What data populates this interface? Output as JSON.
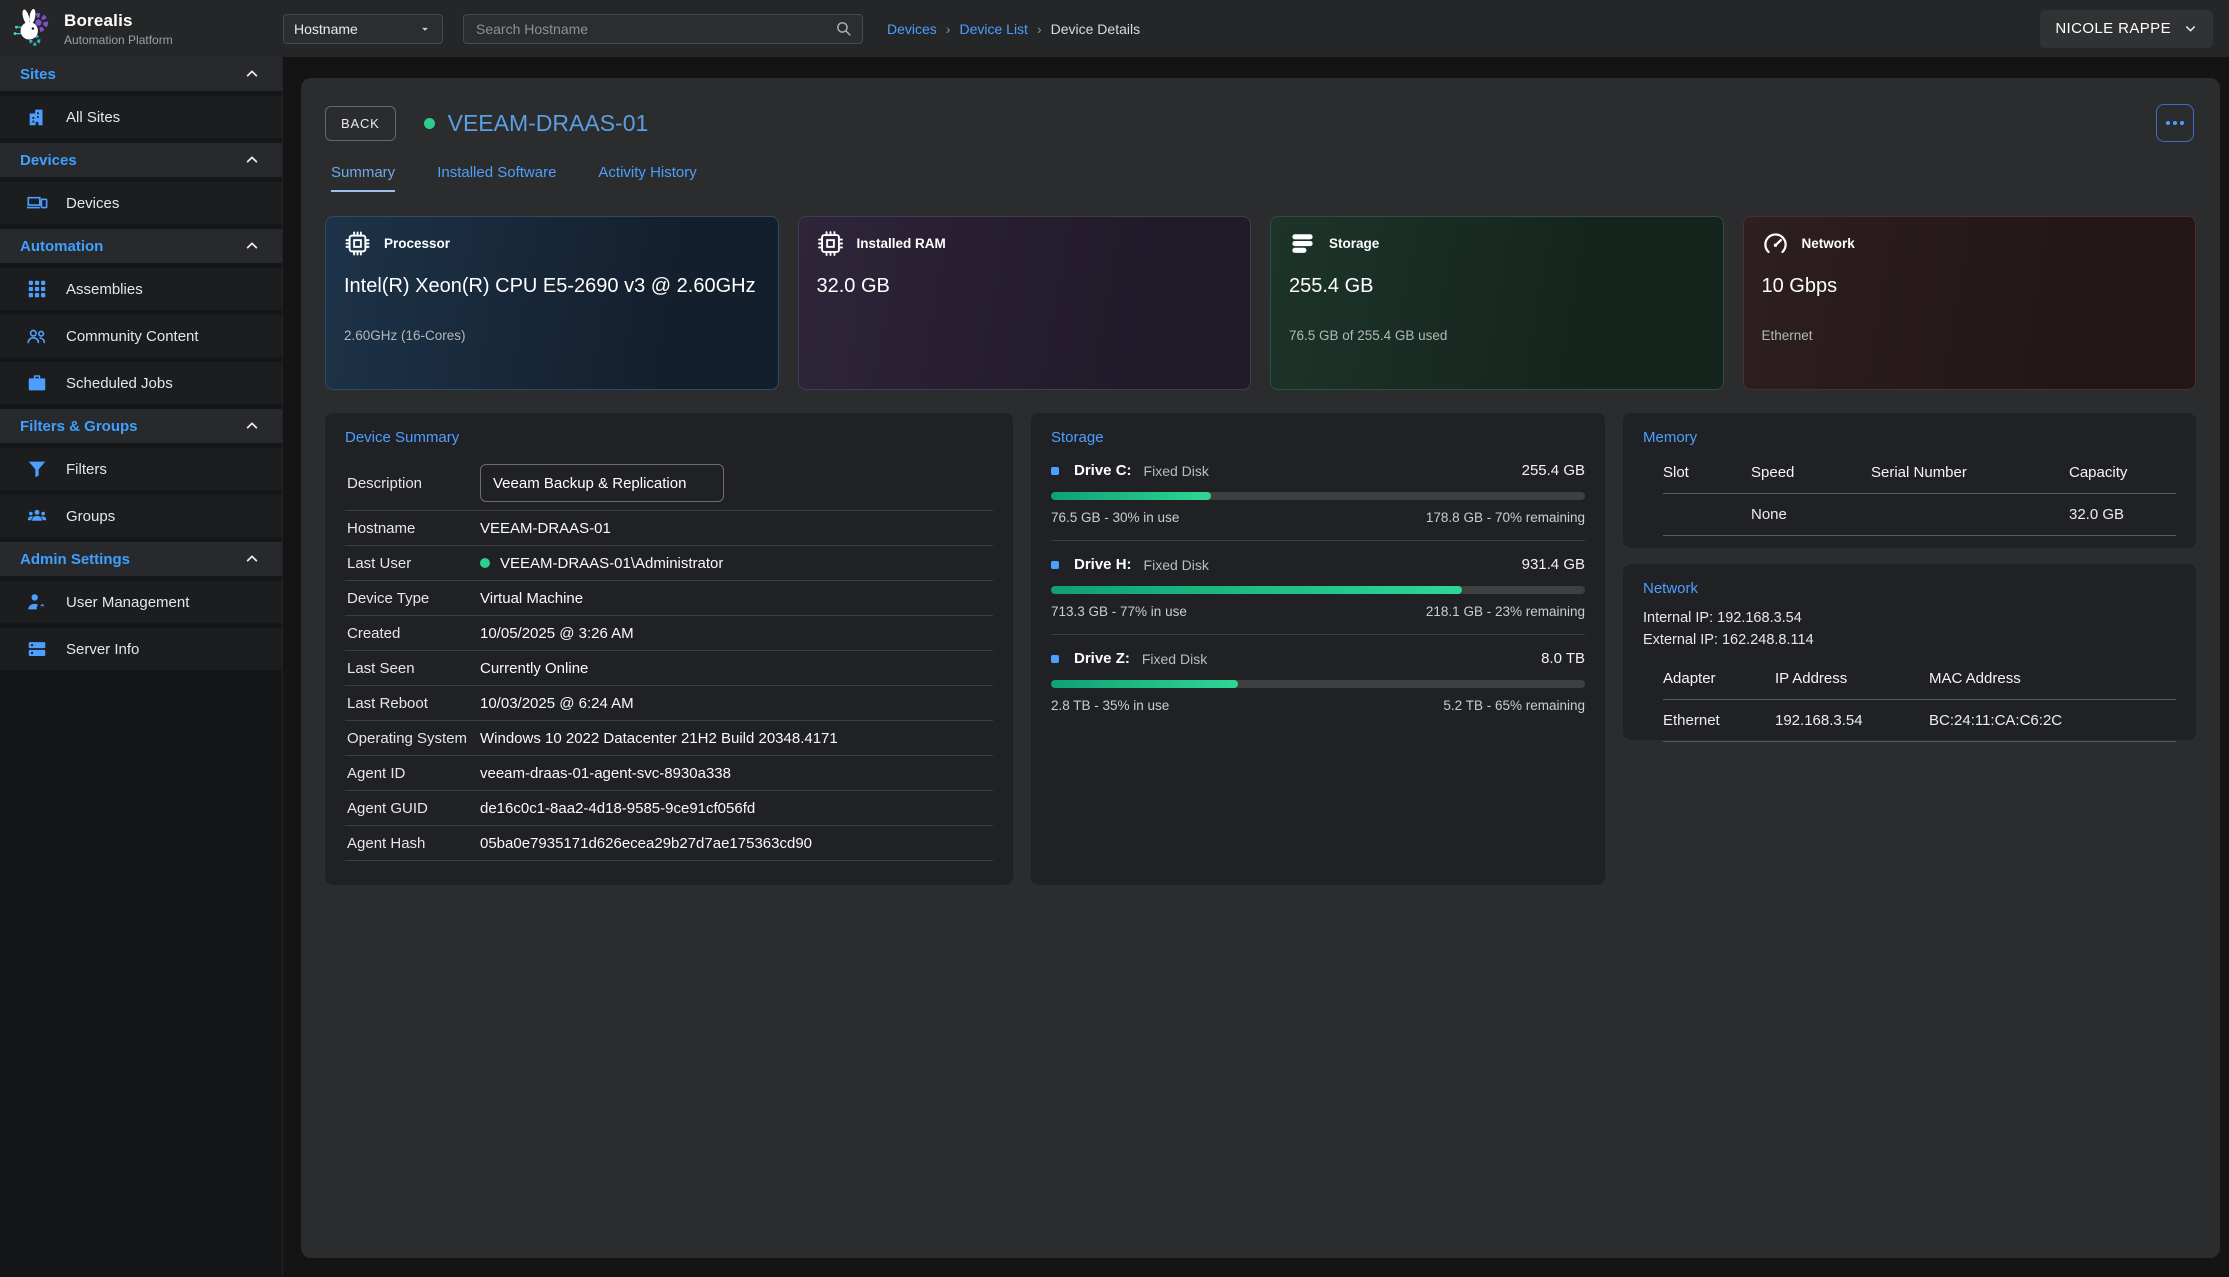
{
  "brand": {
    "name": "Borealis",
    "subtitle": "Automation Platform"
  },
  "topbar": {
    "filter_label": "Hostname",
    "search_placeholder": "Search Hostname",
    "breadcrumbs": [
      {
        "label": "Devices",
        "link": true
      },
      {
        "label": "Device List",
        "link": true
      },
      {
        "label": "Device Details",
        "link": false
      }
    ],
    "user_name": "NICOLE RAPPE"
  },
  "sidebar": {
    "sections": [
      {
        "label": "Sites",
        "items": [
          {
            "label": "All Sites",
            "icon": "building-icon"
          }
        ]
      },
      {
        "label": "Devices",
        "items": [
          {
            "label": "Devices",
            "icon": "devices-icon"
          }
        ]
      },
      {
        "label": "Automation",
        "items": [
          {
            "label": "Assemblies",
            "icon": "grid-icon"
          },
          {
            "label": "Community Content",
            "icon": "people-icon"
          },
          {
            "label": "Scheduled Jobs",
            "icon": "briefcase-icon"
          }
        ]
      },
      {
        "label": "Filters & Groups",
        "items": [
          {
            "label": "Filters",
            "icon": "filter-icon"
          },
          {
            "label": "Groups",
            "icon": "group-icon"
          }
        ]
      },
      {
        "label": "Admin Settings",
        "items": [
          {
            "label": "User Management",
            "icon": "user-gear-icon"
          },
          {
            "label": "Server Info",
            "icon": "server-icon"
          }
        ]
      }
    ]
  },
  "page": {
    "back_label": "BACK",
    "device_name": "VEEAM-DRAAS-01",
    "device_status": "online",
    "tabs": [
      {
        "label": "Summary",
        "active": true
      },
      {
        "label": "Installed Software",
        "active": false
      },
      {
        "label": "Activity History",
        "active": false
      }
    ]
  },
  "stat_cards": [
    {
      "icon": "cpu-icon",
      "label": "Processor",
      "value": "Intel(R) Xeon(R) CPU E5-2690 v3 @ 2.60GHz",
      "sub": "2.60GHz (16-Cores)",
      "theme": "blue"
    },
    {
      "icon": "ram-icon",
      "label": "Installed RAM",
      "value": "32.0 GB",
      "sub": "",
      "theme": "purple"
    },
    {
      "icon": "storage-icon",
      "label": "Storage",
      "value": "255.4 GB",
      "sub": "76.5 GB of 255.4 GB used",
      "theme": "green"
    },
    {
      "icon": "gauge-icon",
      "label": "Network",
      "value": "10 Gbps",
      "sub": "Ethernet",
      "theme": "red"
    }
  ],
  "device_summary": {
    "title": "Device Summary",
    "rows": [
      {
        "label": "Description",
        "type": "input",
        "value": "Veeam Backup & Replication"
      },
      {
        "label": "Hostname",
        "value": "VEEAM-DRAAS-01"
      },
      {
        "label": "Last User",
        "value": "VEEAM-DRAAS-01\\Administrator",
        "dot": true
      },
      {
        "label": "Device Type",
        "value": "Virtual Machine"
      },
      {
        "label": "Created",
        "value": "10/05/2025 @ 3:26 AM"
      },
      {
        "label": "Last Seen",
        "value": "Currently Online"
      },
      {
        "label": "Last Reboot",
        "value": "10/03/2025 @ 6:24 AM"
      },
      {
        "label": "Operating System",
        "value": "Windows 10 2022 Datacenter 21H2 Build 20348.4171"
      },
      {
        "label": "Agent ID",
        "value": "veeam-draas-01-agent-svc-8930a338"
      },
      {
        "label": "Agent GUID",
        "value": "de16c0c1-8aa2-4d18-9585-9ce91cf056fd"
      },
      {
        "label": "Agent Hash",
        "value": "05ba0e7935171d626ecea29b27d7ae175363cd90"
      }
    ]
  },
  "storage_panel": {
    "title": "Storage",
    "drives": [
      {
        "name": "Drive C:",
        "type": "Fixed Disk",
        "size": "255.4 GB",
        "percent": 30,
        "used": "76.5 GB - 30% in use",
        "remaining": "178.8 GB - 70% remaining"
      },
      {
        "name": "Drive H:",
        "type": "Fixed Disk",
        "size": "931.4 GB",
        "percent": 77,
        "used": "713.3 GB - 77% in use",
        "remaining": "218.1 GB - 23% remaining"
      },
      {
        "name": "Drive Z:",
        "type": "Fixed Disk",
        "size": "8.0 TB",
        "percent": 35,
        "used": "2.8 TB - 35% in use",
        "remaining": "5.2 TB - 65% remaining"
      }
    ]
  },
  "memory_panel": {
    "title": "Memory",
    "columns": [
      "Slot",
      "Speed",
      "Serial Number",
      "Capacity"
    ],
    "rows": [
      [
        "",
        "None",
        "",
        "32.0 GB"
      ]
    ]
  },
  "network_panel": {
    "title": "Network",
    "internal_ip": "Internal IP: 192.168.3.54",
    "external_ip": "External IP: 162.248.8.114",
    "columns": [
      "Adapter",
      "IP Address",
      "MAC Address"
    ],
    "rows": [
      [
        "Ethernet",
        "192.168.3.54",
        "BC:24:11:CA:C6:2C"
      ]
    ]
  },
  "colors": {
    "accent_blue": "#4d9fff",
    "status_green": "#2ecc8f",
    "progress_start": "#0fa173",
    "progress_end": "#2fd795"
  }
}
